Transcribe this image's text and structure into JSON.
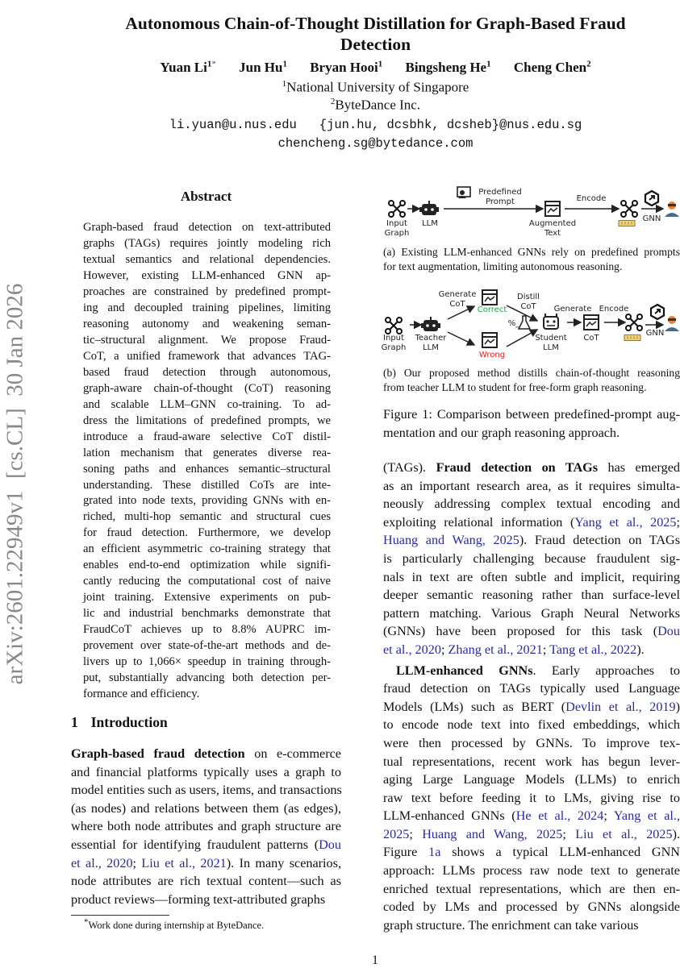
{
  "sidebar_id": "arXiv:2601.22949v1  [cs.CL]  30 Jan 2026",
  "title_lines": [
    "Autonomous Chain-of-Thought Distillation for Graph-Based Fraud",
    "Detection"
  ],
  "authors": [
    {
      "name": "Yuan Li",
      "sup": "1",
      "mark": "*"
    },
    {
      "name": "Jun Hu",
      "sup": "1"
    },
    {
      "name": "Bryan Hooi",
      "sup": "1"
    },
    {
      "name": "Bingsheng He",
      "sup": "1"
    },
    {
      "name": "Cheng Chen",
      "sup": "2"
    }
  ],
  "affiliations": [
    {
      "sup": "1",
      "name": "National University of Singapore"
    },
    {
      "sup": "2",
      "name": "ByteDance Inc."
    }
  ],
  "emails": [
    "li.yuan@u.nus.edu   {jun.hu, dcsbhk, dcsheb}@nus.edu.sg",
    "chencheng.sg@bytedance.com"
  ],
  "abstract": {
    "heading": "Abstract",
    "lines": [
      "Graph-based fraud detection on text-attributed",
      "graphs (TAGs) requires jointly modeling rich",
      "textual semantics and relational dependencies.",
      "However, existing LLM-enhanced GNN ap-",
      "proaches are constrained by predefined prompt-",
      "ing and decoupled training pipelines, limiting",
      "reasoning autonomy and weakening seman-",
      "tic–structural alignment. We propose Fraud-",
      "CoT, a unified framework that advances TAG-",
      "based fraud detection through autonomous,",
      "graph-aware chain-of-thought (CoT) reasoning",
      "and scalable LLM–GNN co-training. To ad-",
      "dress the limitations of predefined prompts, we",
      "introduce a fraud-aware selective CoT distil-",
      "lation mechanism that generates diverse rea-",
      "soning paths and enhances semantic–structural",
      "understanding. These distilled CoTs are inte-",
      "grated into node texts, providing GNNs with en-",
      "riched, multi-hop semantic and structural cues",
      "for fraud detection. Furthermore, we develop",
      "an efficient asymmetric co-training strategy that",
      "enables end-to-end optimization while signifi-",
      "cantly reducing the computational cost of naive",
      "joint training. Extensive experiments on pub-",
      "lic and industrial benchmarks demonstrate that",
      "FraudCoT achieves up to 8.8% AUPRC im-",
      "provement over state-of-the-art methods and de-",
      "livers up to 1,066× speedup in training through-",
      "put, substantially advancing both detection per-",
      "formance and efficiency."
    ]
  },
  "section1": {
    "number": "1",
    "title": "Introduction"
  },
  "intro_lines": [
    [
      [
        "Graph-based fraud detection",
        "b"
      ],
      [
        " on e-commerce",
        ""
      ]
    ],
    "and financial platforms typically uses a graph to",
    "model entities such as users, items, and transactions",
    "(as nodes) and relations between them (as edges),",
    "where both node attributes and graph structure are",
    [
      [
        "essential for identifying fraudulent patterns (",
        ""
      ],
      [
        "Dou",
        "l"
      ]
    ],
    [
      [
        "et al., 2020",
        "l"
      ],
      [
        "; ",
        ""
      ],
      [
        "Liu et al., 2021",
        "l"
      ],
      [
        "). In many scenarios,",
        ""
      ]
    ],
    "node attributes are rich textual content—such as",
    "product reviews—forming text-attributed graphs"
  ],
  "figure": {
    "a": {
      "input_graph": [
        "Input",
        "Graph"
      ],
      "llm": "LLM",
      "predefined_prompt": [
        "Predefined",
        "Prompt"
      ],
      "augmented_text": [
        "Augmented",
        "Text"
      ],
      "encode": "Encode",
      "gnn": "GNN",
      "caption": [
        "(a) Existing LLM-enhanced GNNs rely on predefined prompts",
        "for text augmentation, limiting autonomous reasoning."
      ]
    },
    "b": {
      "input_graph": [
        "Input",
        "Graph"
      ],
      "teacher": [
        "Teacher",
        "LLM"
      ],
      "generate_cot": [
        "Generate",
        "CoT"
      ],
      "correct": "Correct",
      "wrong": "Wrong",
      "distill_cot": [
        "Distill",
        "CoT"
      ],
      "filter_symbol": "%_",
      "student": [
        "Student",
        "LLM"
      ],
      "generate": "Generate",
      "cot": "CoT",
      "encode": "Encode",
      "gnn": "GNN",
      "caption": [
        "(b) Our proposed method distills chain-of-thought reasoning",
        "from teacher LLM to student for free-form graph reasoning."
      ]
    },
    "colors": {
      "correct": "#1aa64a",
      "wrong": "#e02020",
      "person": "#e8833a",
      "link": "#2a2aa0"
    },
    "caption": [
      "Figure 1: Comparison between predefined-prompt aug-",
      "mentation and our graph reasoning approach."
    ]
  },
  "right_para1": [
    [
      [
        "(TAGs). ",
        ""
      ],
      [
        "Fraud detection on TAGs",
        "b"
      ],
      [
        " has emerged",
        ""
      ]
    ],
    "as an important research area, as it requires simulta-",
    "neously addressing complex textual encoding and",
    [
      [
        "exploiting relational information (",
        ""
      ],
      [
        "Yang et al., 2025",
        "l"
      ],
      [
        ";",
        ""
      ]
    ],
    [
      [
        "Huang and Wang, 2025",
        "l"
      ],
      [
        "). Fraud detection on TAGs",
        ""
      ]
    ],
    "is particularly challenging because fraudulent sig-",
    "nals in text are often subtle and implicit, requiring",
    "deeper semantic reasoning rather than surface-level",
    "pattern matching. Various Graph Neural Networks",
    [
      [
        "(GNNs) have been proposed for this task (",
        ""
      ],
      [
        "Dou",
        "l"
      ]
    ],
    [
      [
        "et al., 2020",
        "l"
      ],
      [
        "; ",
        ""
      ],
      [
        "Zhang et al., 2021",
        "l"
      ],
      [
        "; ",
        ""
      ],
      [
        "Tang et al., 2022",
        "l"
      ],
      [
        ").",
        ""
      ]
    ]
  ],
  "right_para2": [
    [
      [
        "LLM-enhanced GNNs",
        "b"
      ],
      [
        ". Early approaches to",
        ""
      ]
    ],
    "fraud detection on TAGs typically used Language",
    [
      [
        "Models (LMs) such as BERT (",
        ""
      ],
      [
        "Devlin et al., 2019",
        "l"
      ],
      [
        ")",
        ""
      ]
    ],
    "to encode node text into fixed embeddings, which",
    "were then processed by GNNs. To improve tex-",
    "tual representations, recent work has begun lever-",
    "aging Large Language Models (LLMs) to enrich",
    "raw text before feeding it to LMs, giving rise to",
    [
      [
        "LLM-enhanced GNNs (",
        ""
      ],
      [
        "He et al., 2024",
        "l"
      ],
      [
        "; ",
        ""
      ],
      [
        "Yang et al.,",
        "l"
      ]
    ],
    [
      [
        "2025",
        "l"
      ],
      [
        "; ",
        ""
      ],
      [
        "Huang and Wang, 2025",
        "l"
      ],
      [
        "; ",
        ""
      ],
      [
        "Liu et al., 2025",
        "l"
      ],
      [
        ").",
        ""
      ]
    ],
    [
      [
        "Figure ",
        ""
      ],
      [
        "1a",
        "l"
      ],
      [
        " shows a typical LLM-enhanced GNN",
        ""
      ]
    ],
    "approach: LLMs process raw node text to generate",
    "enriched textual representations, which are then en-",
    "coded by LMs and processed by GNNs alongside",
    "graph structure. The enrichment can take various"
  ],
  "footnote": {
    "mark": "*",
    "text": "Work done during internship at ByteDance."
  },
  "page_number": "1"
}
